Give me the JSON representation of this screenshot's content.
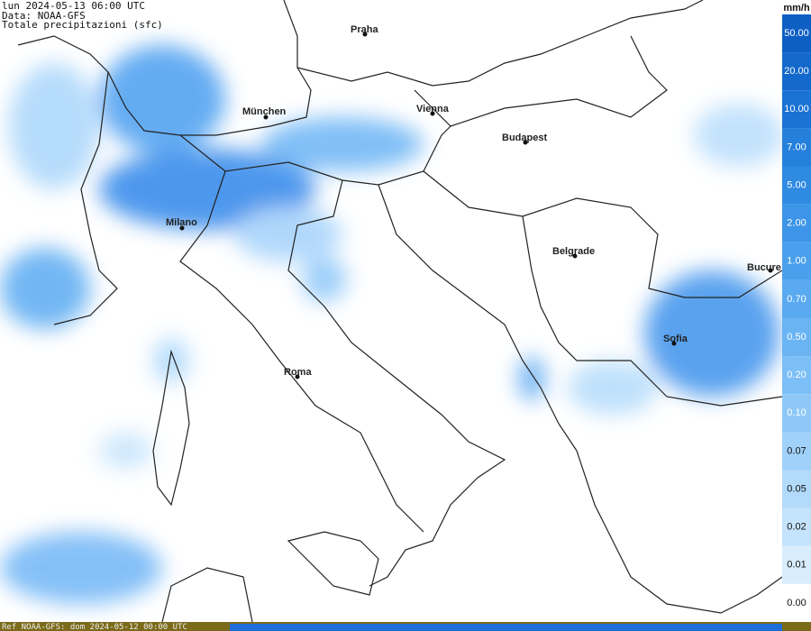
{
  "header": {
    "line1": "lun 2024-05-13 06:00 UTC",
    "line2": "Data: NOAA-GFS",
    "line3": "Totale precipitazioni (sfc)"
  },
  "cities": [
    "Praha",
    "München",
    "Vienna",
    "Budapest",
    "Milano",
    "Belgrade",
    "Bucure",
    "Sofia",
    "Roma"
  ],
  "legend": {
    "unit": "mm/h",
    "labels": [
      "50.00",
      "20.00",
      "10.00",
      "7.00",
      "5.00",
      "2.00",
      "1.00",
      "0.70",
      "0.50",
      "0.20",
      "0.10",
      "0.07",
      "0.05",
      "0.02",
      "0.01",
      "0.00"
    ]
  },
  "footer": "Ref NOAA-GFS: dom 2024-05-12 00:00 UTC"
}
